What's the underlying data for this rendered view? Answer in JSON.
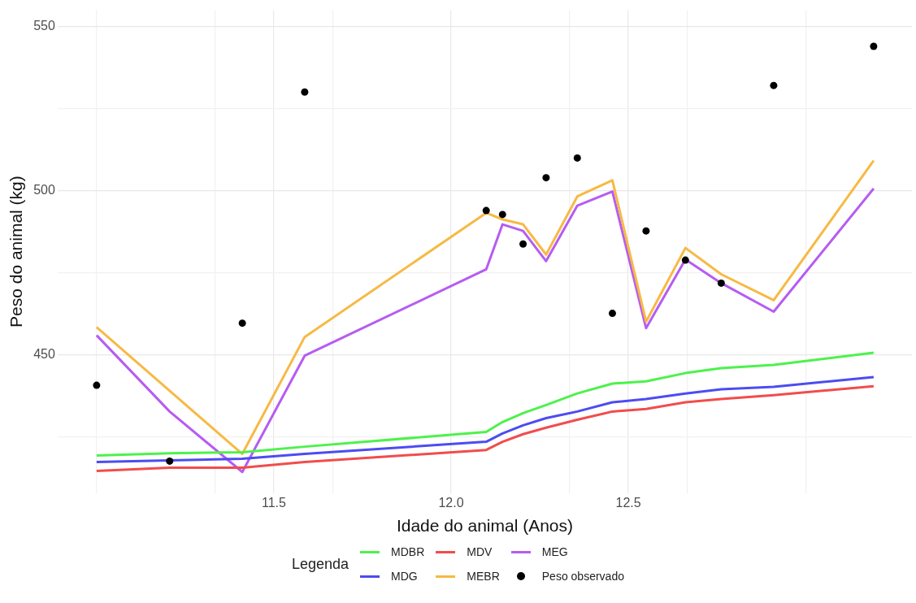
{
  "chart_data": {
    "type": "line",
    "xlabel": "Idade do animal (Anos)",
    "ylabel": "Peso do animal (kg)",
    "legend_title": "Legenda",
    "x": [
      11.0,
      11.206,
      11.411,
      11.587,
      12.099,
      12.145,
      12.203,
      12.268,
      12.356,
      12.455,
      12.55,
      12.661,
      12.762,
      12.91,
      13.192
    ],
    "xlim": [
      10.89,
      13.3
    ],
    "xticks": [
      {
        "value": 11.0,
        "label": null
      },
      {
        "value": 11.333,
        "label": null
      },
      11.5,
      {
        "value": 11.667,
        "label": null
      },
      {
        "value": 12.0,
        "label": "12.0"
      },
      {
        "value": 12.333,
        "label": null
      },
      12.5,
      {
        "value": 12.667,
        "label": null
      },
      {
        "value": 13.0,
        "label": null
      }
    ],
    "ylim": [
      408,
      555
    ],
    "yticks": [
      {
        "value": 425,
        "label": null
      },
      450,
      {
        "value": 475,
        "label": null
      },
      500,
      {
        "value": 525,
        "label": null
      },
      550
    ],
    "grid": true,
    "legend": "bottom",
    "line_style": "solid",
    "series": [
      {
        "name": "MDBR",
        "type": "line",
        "color": "#4cf24c",
        "values": [
          419.4,
          420.1,
          420.4,
          422.1,
          426.6,
          429.6,
          432.3,
          434.8,
          438.3,
          441.3,
          442.0,
          444.5,
          446.0,
          447.0,
          450.7
        ]
      },
      {
        "name": "MDG",
        "type": "line",
        "color": "#4c4cf2",
        "values": [
          417.4,
          417.9,
          418.4,
          419.9,
          423.6,
          426.1,
          428.6,
          430.8,
          432.8,
          435.6,
          436.6,
          438.3,
          439.6,
          440.3,
          443.3
        ]
      },
      {
        "name": "MDV",
        "type": "line",
        "color": "#f24c4c",
        "values": [
          414.7,
          415.7,
          415.7,
          417.4,
          421.1,
          423.6,
          425.9,
          427.9,
          430.3,
          432.8,
          433.6,
          435.6,
          436.6,
          437.8,
          440.5
        ]
      },
      {
        "name": "MEBR",
        "type": "line",
        "color": "#f7b944",
        "values": [
          458.5,
          439.1,
          419.9,
          455.5,
          493.3,
          491.3,
          489.8,
          480.6,
          498.3,
          503.2,
          460.2,
          482.6,
          474.6,
          466.7,
          509.2
        ]
      },
      {
        "name": "MEG",
        "type": "line",
        "color": "#b65cf2",
        "values": [
          456.0,
          432.8,
          414.4,
          449.8,
          476.1,
          489.8,
          487.8,
          478.6,
          495.5,
          499.8,
          458.2,
          479.1,
          471.9,
          463.2,
          500.7
        ]
      },
      {
        "name": "Peso observado",
        "type": "scatter",
        "marker": "circle",
        "color": "#000000",
        "values": [
          440.8,
          417.7,
          459.7,
          530.1,
          494.0,
          492.8,
          483.8,
          504.0,
          510.0,
          462.7,
          487.8,
          478.9,
          471.9,
          532.1,
          544.0
        ]
      }
    ]
  }
}
